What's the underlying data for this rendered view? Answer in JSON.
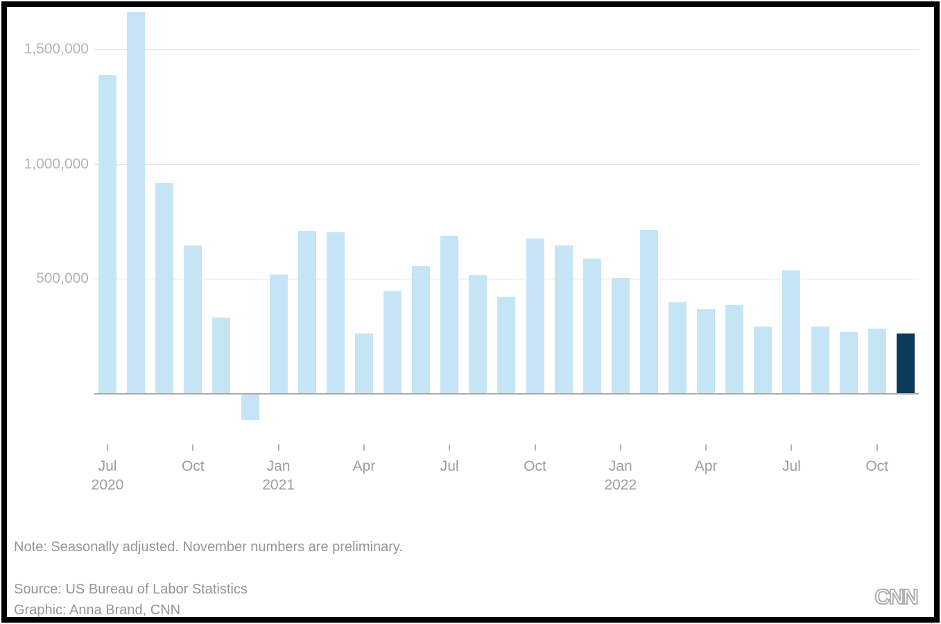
{
  "branding": {
    "logo_text": "CNN"
  },
  "footer": {
    "note": "Note: Seasonally adjusted. November numbers are preliminary.",
    "source": "Source: US Bureau of Labor Statistics",
    "credit": "Graphic: Anna Brand, CNN"
  },
  "chart_data": {
    "type": "bar",
    "categories": [
      "Jul 2020",
      "Aug 2020",
      "Sep 2020",
      "Oct 2020",
      "Nov 2020",
      "Dec 2020",
      "Jan 2021",
      "Feb 2021",
      "Mar 2021",
      "Apr 2021",
      "May 2021",
      "Jun 2021",
      "Jul 2021",
      "Aug 2021",
      "Sep 2021",
      "Oct 2021",
      "Nov 2021",
      "Dec 2021",
      "Jan 2022",
      "Feb 2022",
      "Mar 2022",
      "Apr 2022",
      "May 2022",
      "Jun 2022",
      "Jul 2022",
      "Aug 2022",
      "Sep 2022",
      "Oct 2022",
      "Nov 2022"
    ],
    "values": [
      1388000,
      1665000,
      919000,
      647000,
      333000,
      -115000,
      520000,
      710000,
      704000,
      263000,
      447000,
      557000,
      689000,
      517000,
      424000,
      677000,
      647000,
      588000,
      504000,
      714000,
      398000,
      368000,
      386000,
      293000,
      537000,
      292000,
      269000,
      284000,
      263000
    ],
    "highlight_index": 28,
    "grid": true,
    "legend": null,
    "xlabel": "",
    "ylabel": "",
    "ylim": [
      -200000,
      1700000
    ],
    "baseline_value": 0,
    "yticks": [
      {
        "value": 1500000,
        "label": "1,500,000"
      },
      {
        "value": 1000000,
        "label": "1,000,000"
      },
      {
        "value": 500000,
        "label": "500,000"
      }
    ],
    "xticks": [
      {
        "index": 0,
        "label": "Jul",
        "year": "2020"
      },
      {
        "index": 3,
        "label": "Oct"
      },
      {
        "index": 6,
        "label": "Jan",
        "year": "2021"
      },
      {
        "index": 9,
        "label": "Apr"
      },
      {
        "index": 12,
        "label": "Jul"
      },
      {
        "index": 15,
        "label": "Oct"
      },
      {
        "index": 18,
        "label": "Jan",
        "year": "2022"
      },
      {
        "index": 21,
        "label": "Apr"
      },
      {
        "index": 24,
        "label": "Jul"
      },
      {
        "index": 27,
        "label": "Oct"
      }
    ],
    "colors": {
      "bar": "#c5e5f7",
      "highlight": "#0c3a5c",
      "gridline": "#e4e4e4",
      "baseline": "#aaaaaa",
      "y_axis_text": "#b3b3b3",
      "x_axis_text": "#9e9e9e",
      "footer_text": "#959595",
      "logo": "#aeaeae"
    }
  }
}
